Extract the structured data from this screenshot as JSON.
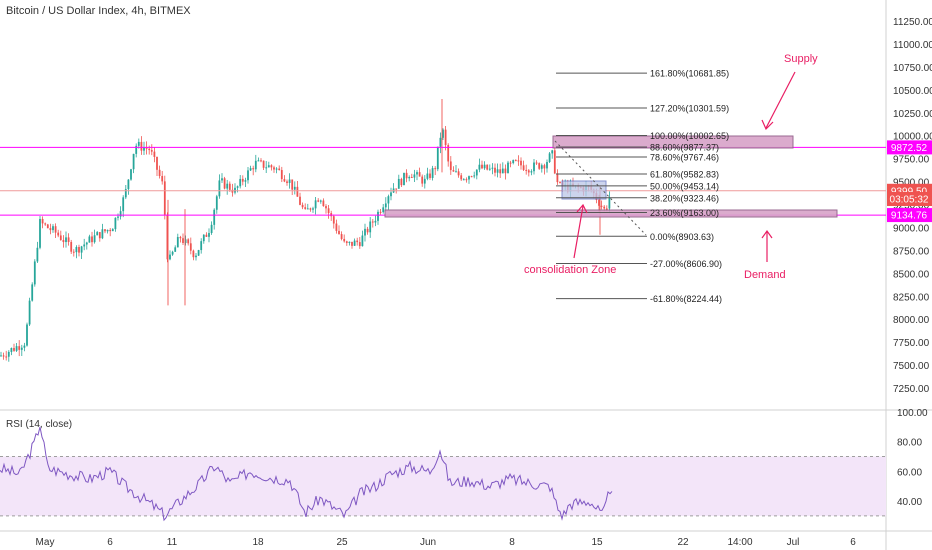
{
  "header": {
    "title": "Bitcoin / US Dollar Index, 4h, BITMEX"
  },
  "rsi_panel": {
    "title": "RSI (14, close)"
  },
  "colors": {
    "up": "#26a69a",
    "down": "#ef5350",
    "magenta": "#ff00ff",
    "annotation": "#e91e63",
    "zone_fill": "#d8a3c8",
    "rsi_line": "#7e57c2",
    "rsi_band": "#f3e5f9"
  },
  "price_axis": {
    "ticks": [
      "11250.00",
      "11000.00",
      "10750.00",
      "10500.00",
      "10250.00",
      "10000.00",
      "9750.00",
      "9500.00",
      "9250.00",
      "9000.00",
      "8750.00",
      "8500.00",
      "8250.00",
      "8000.00",
      "7750.00",
      "7500.00",
      "7250.00"
    ],
    "badges": [
      {
        "label": "9872.52",
        "value": 9872.52,
        "color": "#ff00ff"
      },
      {
        "label": "9399.50",
        "value": 9399.5,
        "color": "#ef5350"
      },
      {
        "label": "03:05:32",
        "value": 9310,
        "color": "#ef5350"
      },
      {
        "label": "9134.76",
        "value": 9134.76,
        "color": "#ff00ff"
      }
    ]
  },
  "rsi_axis": {
    "ticks": [
      "100.00",
      "80.00",
      "60.00",
      "40.00"
    ]
  },
  "time_axis": {
    "labels": [
      "May",
      "6",
      "11",
      "18",
      "25",
      "Jun",
      "8",
      "15",
      "22",
      "14:00",
      "Jul",
      "6"
    ]
  },
  "fibonacci": [
    {
      "label": "161.80%(10681.85)",
      "value": 10681.85
    },
    {
      "label": "127.20%(10301.59)",
      "value": 10301.59
    },
    {
      "label": "100.00%(10002.65)",
      "value": 10002.65
    },
    {
      "label": "88.60%(9877.37)",
      "value": 9877.37
    },
    {
      "label": "78.60%(9767.46)",
      "value": 9767.46
    },
    {
      "label": "61.80%(9582.83)",
      "value": 9582.83
    },
    {
      "label": "50.00%(9453.14)",
      "value": 9453.14
    },
    {
      "label": "38.20%(9323.46)",
      "value": 9323.46
    },
    {
      "label": "23.60%(9163.00)",
      "value": 9163.0
    },
    {
      "label": "0.00%(8903.63)",
      "value": 8903.63
    },
    {
      "label": "-27.00%(8606.90)",
      "value": 8606.9
    },
    {
      "label": "-61.80%(8224.44)",
      "value": 8224.44
    }
  ],
  "horizontal_lines": [
    {
      "value": 9872.52,
      "color": "#ff00ff"
    },
    {
      "value": 9134.76,
      "color": "#ff00ff"
    },
    {
      "value": 9399.5,
      "color": "#ef9a9a"
    }
  ],
  "annotations": {
    "supply": "Supply",
    "demand": "Demand",
    "consolidation": "consolidation Zone"
  }
}
